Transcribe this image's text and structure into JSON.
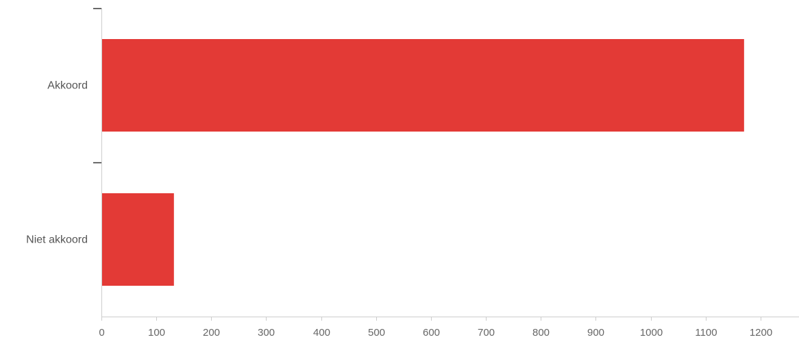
{
  "chart_data": {
    "type": "bar",
    "orientation": "horizontal",
    "categories": [
      "Akkoord",
      "Niet akkoord"
    ],
    "values": [
      1170,
      132
    ],
    "xlim": [
      0,
      1270
    ],
    "xticks": [
      0,
      100,
      200,
      300,
      400,
      500,
      600,
      700,
      800,
      900,
      1000,
      1100,
      1200
    ],
    "title": "",
    "xlabel": "",
    "ylabel": "",
    "grid": false,
    "colors": {
      "bar": "#e33a36",
      "axis": "#cccccc",
      "category_tick": "#333333"
    }
  }
}
